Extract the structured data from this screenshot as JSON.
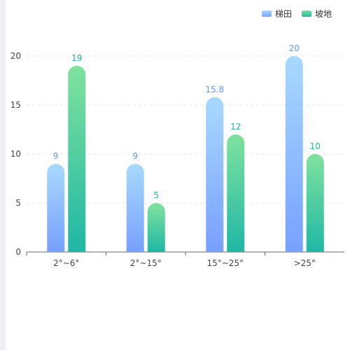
{
  "chart_data": {
    "type": "bar",
    "categories": [
      "2°~6°",
      "2°~15°",
      "15°~25°",
      ">25°"
    ],
    "series": [
      {
        "name": "梯田",
        "values": [
          9,
          9,
          15.8,
          20
        ],
        "labels": [
          "9",
          "9",
          "15.8",
          "20"
        ],
        "color": "#5b9cf4"
      },
      {
        "name": "坡地",
        "values": [
          19,
          5,
          12,
          10
        ],
        "labels": [
          "19",
          "5",
          "12",
          "10"
        ],
        "color": "#21b8a4"
      }
    ],
    "yticks": [
      "0",
      "5",
      "10",
      "15",
      "20"
    ],
    "ylim": [
      0,
      20
    ],
    "grid": true,
    "legend_position": "top-right"
  }
}
